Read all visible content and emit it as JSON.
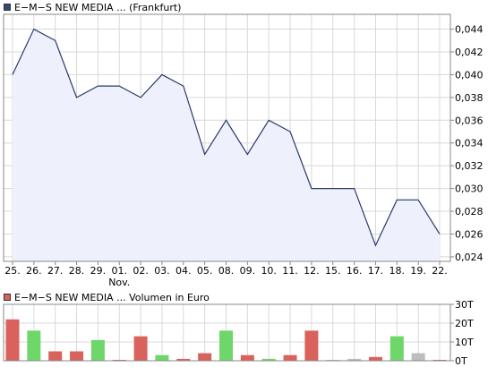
{
  "colors": {
    "price_line": "#2a3a6a",
    "price_fill": "#eef1fb",
    "price_legend": "#2f4a7a",
    "volume_legend": "#d9625c",
    "bar_down": "#d9625c",
    "bar_up": "#6fd66a",
    "bar_flat": "#bdbdbd",
    "grid": "#d8d8d8",
    "axis": "#888888"
  },
  "legend": {
    "price": "E−M−S NEW MEDIA ... (Frankfurt)",
    "volume": "E−M−S NEW MEDIA ... Volumen in Euro"
  },
  "chart_data": [
    {
      "type": "area",
      "x": [
        "25.",
        "26.",
        "27.",
        "28.",
        "29.",
        "01.",
        "02.",
        "03.",
        "04.",
        "05.",
        "08.",
        "09.",
        "10.",
        "11.",
        "12.",
        "15.",
        "16.",
        "17.",
        "18.",
        "19.",
        "22."
      ],
      "x_sublabels": {
        "5": "Nov."
      },
      "values": [
        0.04,
        0.044,
        0.043,
        0.038,
        0.039,
        0.039,
        0.038,
        0.04,
        0.039,
        0.033,
        0.036,
        0.033,
        0.036,
        0.035,
        0.03,
        0.03,
        0.03,
        0.025,
        0.029,
        0.029,
        0.026
      ],
      "yticks": [
        "0,044",
        "0,042",
        "0,040",
        "0,038",
        "0,036",
        "0,034",
        "0,032",
        "0,030",
        "0,028",
        "0,026",
        "0,024"
      ],
      "ytick_values": [
        0.044,
        0.042,
        0.04,
        0.038,
        0.036,
        0.034,
        0.032,
        0.03,
        0.028,
        0.026,
        0.024
      ],
      "ylim": [
        0.0236,
        0.0453
      ],
      "grid": true
    },
    {
      "type": "bar",
      "values": [
        22,
        16,
        5,
        5,
        11,
        0.4,
        13,
        3,
        1,
        4,
        16,
        3,
        1,
        3,
        16,
        0.3,
        1,
        2,
        13,
        4,
        0.4
      ],
      "colors": [
        "down",
        "up",
        "down",
        "down",
        "up",
        "down",
        "down",
        "up",
        "down",
        "down",
        "up",
        "down",
        "up",
        "down",
        "down",
        "flat",
        "flat",
        "down",
        "up",
        "flat",
        "down"
      ],
      "yticks": [
        "30T",
        "20T",
        "10T",
        "0T"
      ],
      "ytick_values": [
        30,
        20,
        10,
        0
      ],
      "ylim": [
        0,
        30
      ],
      "grid": true
    }
  ]
}
